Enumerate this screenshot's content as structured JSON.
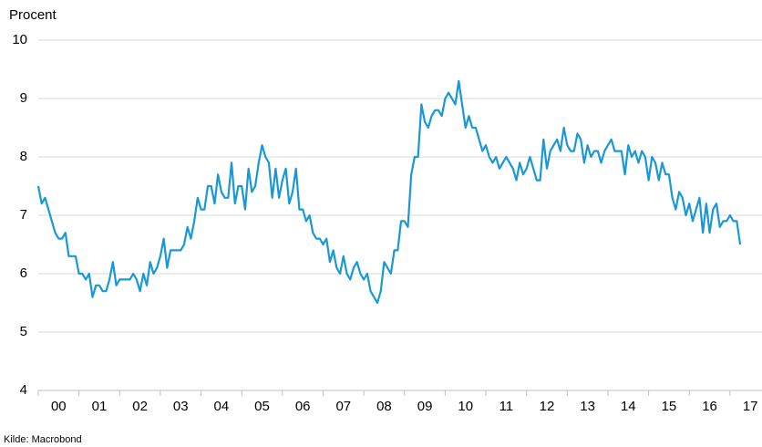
{
  "chart_data": {
    "type": "line",
    "y_label": "Procent",
    "source": "Kilde: Macrobond",
    "categories": [
      null,
      null,
      null,
      null,
      null,
      null,
      "00",
      null,
      null,
      null,
      null,
      null,
      null,
      null,
      null,
      null,
      null,
      null,
      "01",
      null,
      null,
      null,
      null,
      null,
      null,
      null,
      null,
      null,
      null,
      null,
      "02",
      null,
      null,
      null,
      null,
      null,
      null,
      null,
      null,
      null,
      null,
      null,
      "03",
      null,
      null,
      null,
      null,
      null,
      null,
      null,
      null,
      null,
      null,
      null,
      "04",
      null,
      null,
      null,
      null,
      null,
      null,
      null,
      null,
      null,
      null,
      null,
      "05",
      null,
      null,
      null,
      null,
      null,
      null,
      null,
      null,
      null,
      null,
      null,
      "06",
      null,
      null,
      null,
      null,
      null,
      null,
      null,
      null,
      null,
      null,
      null,
      "07",
      null,
      null,
      null,
      null,
      null,
      null,
      null,
      null,
      null,
      null,
      null,
      "08",
      null,
      null,
      null,
      null,
      null,
      null,
      null,
      null,
      null,
      null,
      null,
      "09",
      null,
      null,
      null,
      null,
      null,
      null,
      null,
      null,
      null,
      null,
      null,
      "10",
      null,
      null,
      null,
      null,
      null,
      null,
      null,
      null,
      null,
      null,
      null,
      "11",
      null,
      null,
      null,
      null,
      null,
      null,
      null,
      null,
      null,
      null,
      null,
      "12",
      null,
      null,
      null,
      null,
      null,
      null,
      null,
      null,
      null,
      null,
      null,
      "13",
      null,
      null,
      null,
      null,
      null,
      null,
      null,
      null,
      null,
      null,
      null,
      "14",
      null,
      null,
      null,
      null,
      null,
      null,
      null,
      null,
      null,
      null,
      null,
      "15",
      null,
      null,
      null,
      null,
      null,
      null,
      null,
      null,
      null,
      null,
      null,
      "16",
      null,
      null,
      null,
      null,
      null,
      null,
      null,
      null,
      null,
      null,
      null,
      "17"
    ],
    "series": [
      {
        "name": null,
        "color": "#1a98d5",
        "values": [
          7.5,
          7.2,
          7.3,
          7.1,
          6.9,
          6.7,
          6.6,
          6.6,
          6.7,
          6.3,
          6.3,
          6.3,
          6.0,
          6.0,
          5.9,
          6.0,
          5.6,
          5.8,
          5.8,
          5.7,
          5.7,
          5.9,
          6.2,
          5.8,
          5.9,
          5.9,
          5.9,
          5.9,
          6.0,
          5.9,
          5.7,
          6.0,
          5.8,
          6.2,
          6.0,
          6.1,
          6.3,
          6.6,
          6.1,
          6.4,
          6.4,
          6.4,
          6.4,
          6.5,
          6.8,
          6.6,
          6.9,
          7.3,
          7.1,
          7.1,
          7.5,
          7.5,
          7.2,
          7.7,
          7.4,
          7.3,
          7.3,
          7.9,
          7.2,
          7.5,
          7.5,
          7.1,
          7.8,
          7.4,
          7.5,
          7.9,
          8.2,
          8.0,
          7.9,
          7.3,
          7.8,
          7.3,
          7.6,
          7.8,
          7.2,
          7.4,
          7.8,
          7.1,
          7.1,
          6.9,
          7.0,
          6.7,
          6.6,
          6.6,
          6.5,
          6.6,
          6.2,
          6.4,
          6.1,
          6.0,
          6.3,
          6.0,
          5.9,
          6.1,
          6.2,
          6.0,
          5.9,
          6.0,
          5.7,
          5.6,
          5.5,
          5.7,
          6.2,
          6.1,
          6.0,
          6.4,
          6.4,
          6.9,
          6.9,
          6.8,
          7.7,
          8.0,
          8.0,
          8.9,
          8.6,
          8.5,
          8.7,
          8.8,
          8.8,
          8.7,
          9.0,
          9.1,
          9.0,
          8.9,
          9.3,
          8.9,
          8.5,
          8.7,
          8.5,
          8.5,
          8.3,
          8.1,
          8.2,
          8.0,
          7.9,
          8.0,
          7.8,
          7.9,
          8.0,
          7.9,
          7.8,
          7.6,
          7.9,
          7.7,
          7.8,
          8.0,
          7.8,
          7.6,
          7.6,
          8.3,
          7.8,
          8.1,
          8.2,
          8.3,
          8.1,
          8.5,
          8.2,
          8.1,
          8.1,
          8.4,
          8.3,
          7.9,
          8.2,
          8.0,
          8.1,
          8.1,
          7.9,
          8.1,
          8.2,
          8.3,
          8.1,
          8.1,
          8.1,
          7.7,
          8.2,
          8.0,
          8.1,
          7.9,
          8.1,
          8.0,
          7.6,
          8.0,
          7.9,
          7.6,
          7.9,
          7.7,
          7.7,
          7.3,
          7.1,
          7.4,
          7.3,
          7.0,
          7.2,
          6.9,
          7.1,
          7.3,
          6.7,
          7.2,
          6.7,
          7.1,
          7.2,
          6.8,
          6.9,
          6.9,
          7.0,
          6.9,
          6.9,
          6.5,
          null,
          null,
          null
        ]
      }
    ],
    "ylim": [
      4,
      10
    ],
    "yticks": [
      4,
      5,
      6,
      7,
      8,
      9,
      10
    ],
    "grid": true
  }
}
